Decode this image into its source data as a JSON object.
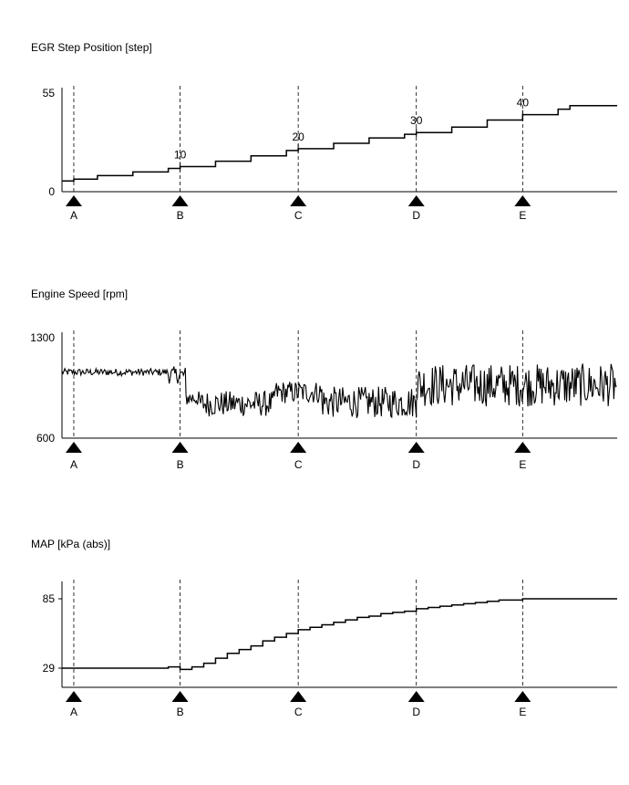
{
  "chart_data": [
    {
      "type": "line",
      "title": "EGR Step Position [step]",
      "ylabel": "",
      "xlabel": "",
      "ylim": [
        0,
        55
      ],
      "yticks": [
        "55",
        "0"
      ],
      "markers": [
        "A",
        "B",
        "C",
        "D",
        "E"
      ],
      "marker_x": [
        1,
        10,
        20,
        30,
        39
      ],
      "annotations": [
        {
          "label": "10",
          "x": 10,
          "y": 14
        },
        {
          "label": "20",
          "x": 20,
          "y": 24
        },
        {
          "label": "30",
          "x": 30,
          "y": 33
        },
        {
          "label": "40",
          "x": 39,
          "y": 43
        }
      ],
      "xlim": [
        0,
        47
      ],
      "series": [
        {
          "values": [
            [
              0,
              6
            ],
            [
              1,
              7
            ],
            [
              3,
              9
            ],
            [
              6,
              11
            ],
            [
              9,
              13
            ],
            [
              10,
              14
            ],
            [
              13,
              17
            ],
            [
              16,
              20
            ],
            [
              19,
              23
            ],
            [
              20,
              24
            ],
            [
              23,
              27
            ],
            [
              26,
              30
            ],
            [
              29,
              32
            ],
            [
              30,
              33
            ],
            [
              33,
              36
            ],
            [
              36,
              40
            ],
            [
              39,
              43
            ],
            [
              42,
              46
            ],
            [
              43,
              48
            ],
            [
              47,
              48
            ]
          ],
          "step": true
        }
      ]
    },
    {
      "type": "line",
      "title": "Engine Speed [rpm]",
      "ylabel": "",
      "xlabel": "",
      "ylim": [
        600,
        1300
      ],
      "yticks": [
        "1300",
        "600"
      ],
      "markers": [
        "A",
        "B",
        "C",
        "D",
        "E"
      ],
      "marker_x": [
        1,
        10,
        20,
        30,
        39
      ],
      "xlim": [
        0,
        47
      ],
      "noise_segments": [
        {
          "from": 0,
          "to": 9,
          "mean": 1060,
          "amp": 25
        },
        {
          "from": 9,
          "to": 10.5,
          "mean": 1040,
          "amp": 60
        },
        {
          "from": 10.5,
          "to": 11.5,
          "mean": 880,
          "amp": 60
        },
        {
          "from": 11.5,
          "to": 18,
          "mean": 840,
          "amp": 90
        },
        {
          "from": 18,
          "to": 22,
          "mean": 920,
          "amp": 80
        },
        {
          "from": 22,
          "to": 30,
          "mean": 850,
          "amp": 110
        },
        {
          "from": 30,
          "to": 47,
          "mean": 970,
          "amp": 150
        }
      ]
    },
    {
      "type": "line",
      "title": "MAP [kPa (abs)]",
      "ylabel": "",
      "xlabel": "",
      "ylim": [
        14,
        100
      ],
      "yticks": [
        "85",
        "29"
      ],
      "ytick_values": [
        85,
        29
      ],
      "markers": [
        "A",
        "B",
        "C",
        "D",
        "E"
      ],
      "marker_x": [
        1,
        10,
        20,
        30,
        39
      ],
      "xlim": [
        0,
        47
      ],
      "series": [
        {
          "values": [
            [
              0,
              29
            ],
            [
              8,
              29
            ],
            [
              9,
              30
            ],
            [
              10,
              28
            ],
            [
              11,
              30
            ],
            [
              12,
              33
            ],
            [
              13,
              37
            ],
            [
              14,
              41
            ],
            [
              15,
              44
            ],
            [
              16,
              47
            ],
            [
              17,
              51
            ],
            [
              18,
              54
            ],
            [
              19,
              57
            ],
            [
              20,
              60
            ],
            [
              21,
              62
            ],
            [
              22,
              64
            ],
            [
              23,
              66
            ],
            [
              24,
              68
            ],
            [
              25,
              70
            ],
            [
              26,
              71
            ],
            [
              27,
              73
            ],
            [
              28,
              74
            ],
            [
              29,
              75
            ],
            [
              30,
              77
            ],
            [
              31,
              78
            ],
            [
              32,
              79
            ],
            [
              33,
              80
            ],
            [
              34,
              81
            ],
            [
              35,
              82
            ],
            [
              36,
              83
            ],
            [
              37,
              84
            ],
            [
              38,
              84
            ],
            [
              39,
              85
            ],
            [
              42,
              85
            ],
            [
              47,
              85
            ]
          ],
          "step": true
        }
      ]
    }
  ]
}
